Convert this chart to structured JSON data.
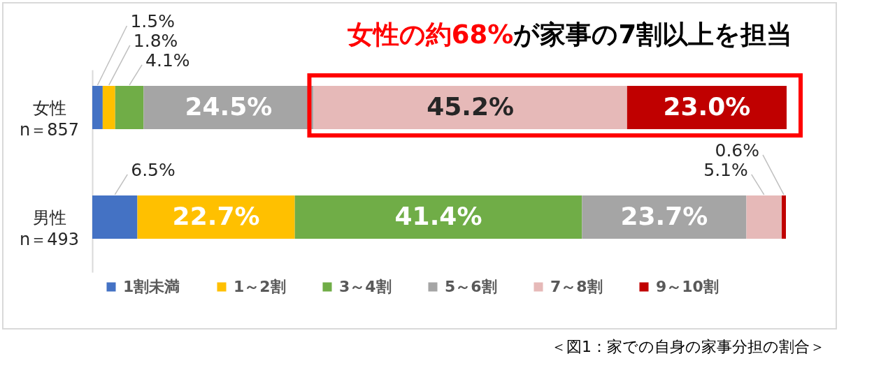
{
  "chart_data": {
    "type": "bar",
    "orientation": "horizontal",
    "stacked": true,
    "title": "女性の約68%が家事の7割以上を担当",
    "categories": [
      "女性\nn＝857",
      "男性\nn＝493"
    ],
    "series": [
      {
        "name": "1割未満",
        "color": "#4472c4",
        "values": [
          1.5,
          6.5
        ],
        "value_labels": [
          "1.5%",
          "6.5%"
        ]
      },
      {
        "name": "1～2割",
        "color": "#ffc000",
        "values": [
          1.8,
          22.7
        ],
        "value_labels": [
          "1.8%",
          "22.7%"
        ]
      },
      {
        "name": "3～4割",
        "color": "#70ad47",
        "values": [
          4.1,
          41.4
        ],
        "value_labels": [
          "4.1%",
          "41.4%"
        ]
      },
      {
        "name": "5～6割",
        "color": "#a5a5a5",
        "values": [
          24.5,
          23.7
        ],
        "value_labels": [
          "24.5%",
          "23.7%"
        ]
      },
      {
        "name": "7～8割",
        "color": "#e6b9b8",
        "values": [
          45.2,
          5.1
        ],
        "value_labels": [
          "45.2%",
          "5.1%"
        ]
      },
      {
        "name": "9～10割",
        "color": "#c00000",
        "values": [
          23.0,
          0.6
        ],
        "value_labels": [
          "23.0%",
          "0.6%"
        ]
      }
    ],
    "legend": "bottom",
    "tick_labels": "y",
    "annotations": [
      "＜図1：家での自身の家事分担の割合＞"
    ]
  }
}
